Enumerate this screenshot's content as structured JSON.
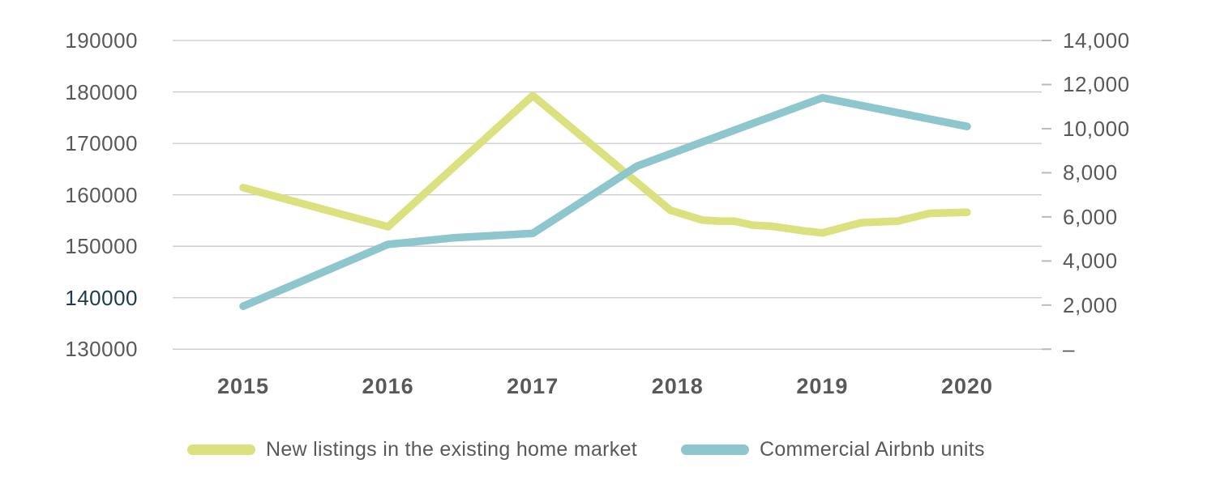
{
  "chart_data": {
    "type": "line",
    "title": "",
    "x": [
      2015,
      2016,
      2017,
      2018,
      2019,
      2020
    ],
    "x_labels": [
      "2015",
      "2016",
      "2017",
      "2018",
      "2019",
      "2020"
    ],
    "grid": "horizontal",
    "legend_position": "bottom",
    "series": [
      {
        "name": "New listings in the existing home market",
        "axis": "left",
        "color": "#dce180",
        "values": [
          161400,
          153800,
          179300,
          157000,
          152600,
          156600
        ],
        "detail_points": [
          [
            2015.0,
            161400
          ],
          [
            2016.0,
            153800
          ],
          [
            2017.0,
            179300
          ],
          [
            2017.95,
            157000
          ],
          [
            2018.17,
            155100
          ],
          [
            2018.28,
            154900
          ],
          [
            2018.39,
            154900
          ],
          [
            2018.52,
            154100
          ],
          [
            2018.65,
            153900
          ],
          [
            2018.87,
            153000
          ],
          [
            2019.0,
            152600
          ],
          [
            2019.27,
            154600
          ],
          [
            2019.52,
            154900
          ],
          [
            2019.74,
            156400
          ],
          [
            2020.0,
            156600
          ]
        ]
      },
      {
        "name": "Commercial Airbnb units",
        "axis": "right",
        "color": "#8dc6cc",
        "values": [
          1950,
          4750,
          5250,
          9000,
          11400,
          10100
        ],
        "detail_points": [
          [
            2015.0,
            1950
          ],
          [
            2016.0,
            4750
          ],
          [
            2016.45,
            5050
          ],
          [
            2017.0,
            5250
          ],
          [
            2017.72,
            8300
          ],
          [
            2019.0,
            11400
          ],
          [
            2020.0,
            10100
          ]
        ]
      }
    ],
    "left_axis": {
      "min": 130000,
      "max": 190000,
      "step": 10000,
      "ticks": [
        {
          "label": "190000",
          "value": 190000,
          "color": "#58595b"
        },
        {
          "label": "180000",
          "value": 180000,
          "color": "#58595b"
        },
        {
          "label": "170000",
          "value": 170000,
          "color": "#58595b"
        },
        {
          "label": "160000",
          "value": 160000,
          "color": "#58595b"
        },
        {
          "label": "150000",
          "value": 150000,
          "color": "#58595b"
        },
        {
          "label": "140000",
          "value": 140000,
          "color": "#1f3a4d"
        },
        {
          "label": "130000",
          "value": 130000,
          "color": "#58595b"
        }
      ]
    },
    "right_axis": {
      "min": 0,
      "max": 14000,
      "step": 2000,
      "ticks": [
        {
          "label": "14,000",
          "value": 14000
        },
        {
          "label": "12,000",
          "value": 12000
        },
        {
          "label": "10,000",
          "value": 10000
        },
        {
          "label": "8,000",
          "value": 8000
        },
        {
          "label": "6,000",
          "value": 6000
        },
        {
          "label": "4,000",
          "value": 4000
        },
        {
          "label": "2,000",
          "value": 2000
        },
        {
          "label": "–",
          "value": 0
        }
      ]
    }
  },
  "colors": {
    "grid_line": "#c9cacb",
    "right_tick": "#b9babc",
    "axis_text": "#58595b",
    "emphasis_text": "#1f3a4d",
    "background": "#ffffff"
  },
  "legend": {
    "items": [
      {
        "label": "New listings in the existing home market",
        "color": "#dce180"
      },
      {
        "label": "Commercial Airbnb units",
        "color": "#8dc6cc"
      }
    ]
  }
}
